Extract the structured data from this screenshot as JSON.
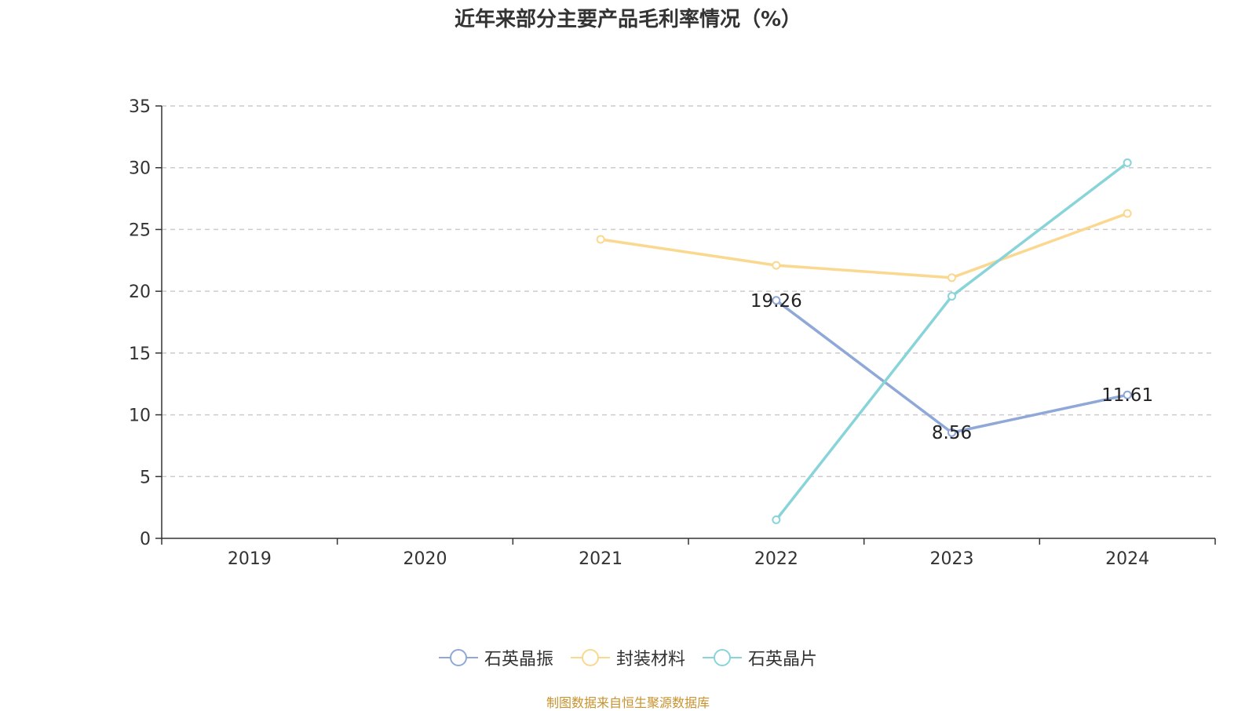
{
  "chart_data": {
    "type": "line",
    "title": "近年来部分主要产品毛利率情况（%）",
    "categories": [
      "2019",
      "2020",
      "2021",
      "2022",
      "2023",
      "2024"
    ],
    "ylim": [
      0,
      35
    ],
    "yticks": [
      0,
      5,
      10,
      15,
      20,
      25,
      30,
      35
    ],
    "grid": true,
    "legend_position": "bottom",
    "series": [
      {
        "name": "石英晶振",
        "color": "#8fa8d8",
        "values": [
          null,
          null,
          null,
          19.26,
          8.56,
          11.61
        ],
        "labels": [
          "",
          "",
          "",
          "19.26",
          "8.56",
          "11.61"
        ]
      },
      {
        "name": "封装材料",
        "color": "#fbd88f",
        "values": [
          null,
          null,
          24.2,
          22.1,
          21.1,
          26.3
        ],
        "labels": [
          "",
          "",
          "",
          "",
          "",
          ""
        ]
      },
      {
        "name": "石英晶片",
        "color": "#88d4d9",
        "values": [
          null,
          null,
          null,
          1.5,
          19.6,
          30.4
        ],
        "labels": [
          "",
          "",
          "",
          "",
          "",
          ""
        ]
      }
    ]
  },
  "source": "制图数据来自恒生聚源数据库"
}
